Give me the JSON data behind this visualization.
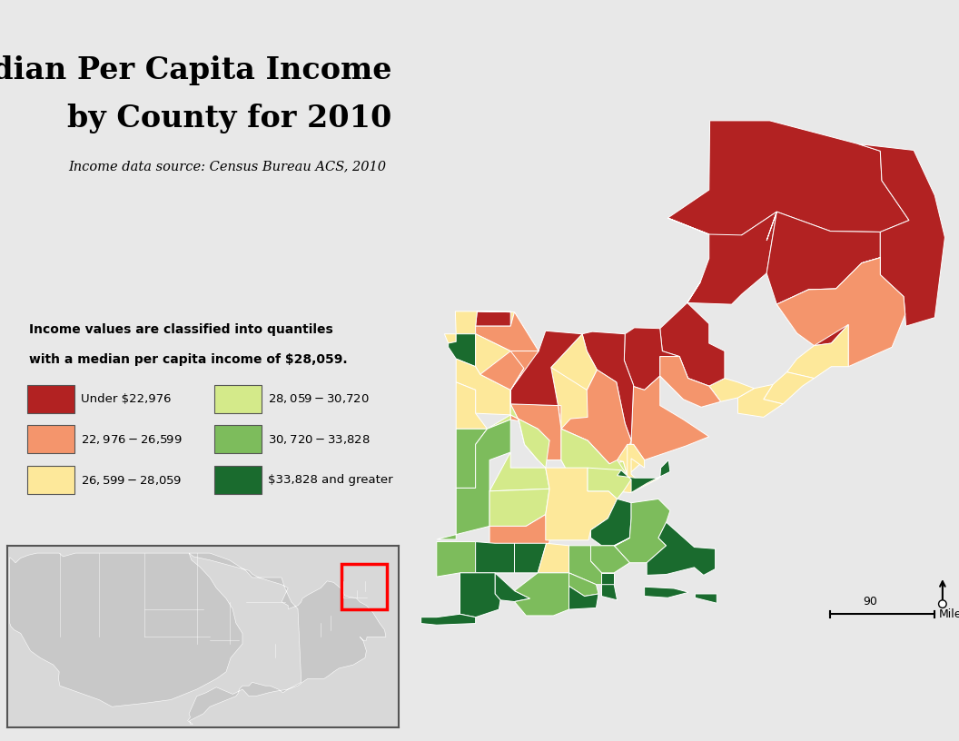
{
  "title_line1": "Median Per Capita Income",
  "title_line2": "by County for 2010",
  "subtitle": "Income data source: Census Bureau ACS, 2010",
  "legend_note_line1": "Income values are classified into quantiles",
  "legend_note_line2": "with a median per capita income of $28,059.",
  "legend_items": [
    {
      "label": "Under $22,976",
      "color": "#b22222"
    },
    {
      "label": "$22,976 - $26,599",
      "color": "#f4956c"
    },
    {
      "label": "$26,599 - $28,059",
      "color": "#fde89a"
    },
    {
      "label": "$28,059 - $30,720",
      "color": "#d4ea8a"
    },
    {
      "label": "$30,720 - $33,828",
      "color": "#7dbc5c"
    },
    {
      "label": "$33,828 and greater",
      "color": "#1a6b2e"
    }
  ],
  "bg_color": "#e8e8e8",
  "map_bg": "#f2f2f2",
  "scale_bar_label": "90",
  "scale_bar_unit": "Miles",
  "colors": {
    "c1": "#b22222",
    "c2": "#f4956c",
    "c3": "#fde89a",
    "c4": "#d4ea8a",
    "c5": "#7dbc5c",
    "c6": "#1a6b2e"
  }
}
